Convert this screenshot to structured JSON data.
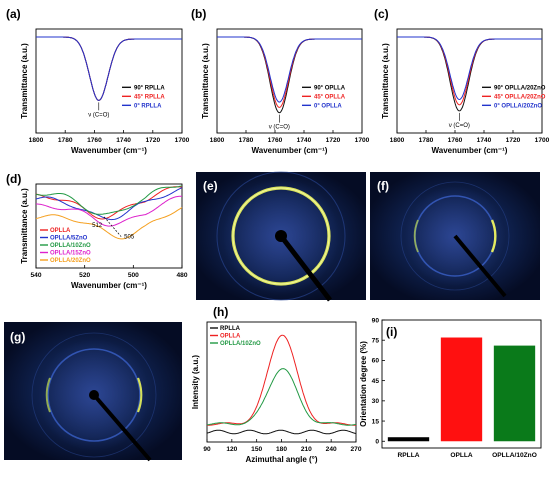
{
  "panel_labels": [
    "(a)",
    "(b)",
    "(c)",
    "(d)",
    "(e)",
    "(f)",
    "(g)",
    "(h)",
    "(i)"
  ],
  "colors": {
    "black": "#111111",
    "red": "#ee2222",
    "blue": "#2233cc",
    "green": "#229944",
    "magenta": "#dd22cc",
    "orange": "#f5a020",
    "xray_bg": "#0a1a3a",
    "ring": "#d8e060"
  },
  "chart_data": [
    {
      "panel": "(a)",
      "type": "line",
      "xlabel": "Wavenumber (cm⁻¹)",
      "ylabel": "Transmittance (a.u.)",
      "xlim": [
        1800,
        1700
      ],
      "xticks": [
        1800,
        1780,
        1760,
        1740,
        1720,
        1700
      ],
      "annotation": "ν (C=O)",
      "min_at": 1757,
      "series": [
        {
          "name": "90° RPLLA",
          "color": "#111111",
          "depth": 0.72
        },
        {
          "name": "45° RPLLA",
          "color": "#ee2222",
          "depth": 0.72
        },
        {
          "name": "0° RPLLA",
          "color": "#2233cc",
          "depth": 0.72
        }
      ]
    },
    {
      "panel": "(b)",
      "type": "line",
      "xlabel": "Wavenumber (cm⁻¹)",
      "ylabel": "Transmittance (a.u.)",
      "xlim": [
        1800,
        1700
      ],
      "xticks": [
        1800,
        1780,
        1760,
        1740,
        1720,
        1700
      ],
      "annotation": "ν (C=O)",
      "min_at": 1757,
      "series": [
        {
          "name": "90° OPLLA",
          "color": "#111111",
          "depth": 0.86
        },
        {
          "name": "45° OPLLA",
          "color": "#ee2222",
          "depth": 0.8
        },
        {
          "name": "0° OPLLA",
          "color": "#2233cc",
          "depth": 0.74
        }
      ]
    },
    {
      "panel": "(c)",
      "type": "line",
      "xlabel": "Wavenumber (cm⁻¹)",
      "ylabel": "Transmittance (a.u.)",
      "xlim": [
        1800,
        1700
      ],
      "xticks": [
        1800,
        1780,
        1760,
        1740,
        1720,
        1700
      ],
      "annotation": "ν (C=O)",
      "min_at": 1757,
      "series": [
        {
          "name": "90° OPLLA/20ZnO",
          "color": "#111111",
          "depth": 0.84
        },
        {
          "name": "45° OPLLA/20ZnO",
          "color": "#ee2222",
          "depth": 0.77
        },
        {
          "name": "0° OPLLA/20ZnO",
          "color": "#2233cc",
          "depth": 0.71
        }
      ]
    },
    {
      "panel": "(d)",
      "type": "line",
      "xlabel": "Wavenumber (cm⁻¹)",
      "ylabel": "Transmittance (a.u.)",
      "xlim": [
        540,
        480
      ],
      "xticks": [
        540,
        520,
        500,
        480
      ],
      "annotations": [
        "512",
        "505"
      ],
      "series": [
        {
          "name": "OPLLA",
          "color": "#ee2222"
        },
        {
          "name": "OPLLA/5ZnO",
          "color": "#2233cc"
        },
        {
          "name": "OPLLA/10ZnO",
          "color": "#229944"
        },
        {
          "name": "OPLLA/15ZnO",
          "color": "#dd22cc"
        },
        {
          "name": "OPLLA/20ZnO",
          "color": "#f5a020"
        }
      ]
    },
    {
      "panel": "(h)",
      "type": "line",
      "xlabel": "Azimuthal angle (°)",
      "ylabel": "Intensity (a.u.)",
      "xlim": [
        90,
        270
      ],
      "xticks": [
        90,
        120,
        150,
        180,
        210,
        240,
        270
      ],
      "series": [
        {
          "name": "RPLLA",
          "color": "#111111",
          "peak": 0.0
        },
        {
          "name": "OPLLA",
          "color": "#ee2222",
          "peak": 1.0
        },
        {
          "name": "OPLLA/10ZnO",
          "color": "#229944",
          "peak": 0.62
        }
      ]
    },
    {
      "panel": "(i)",
      "type": "bar",
      "ylabel": "Orientation degree (%)",
      "ylim": [
        -5,
        90
      ],
      "yticks": [
        0,
        15,
        30,
        45,
        60,
        75,
        90
      ],
      "categories": [
        "RPLLA",
        "OPLLA",
        "OPLLA/10ZnO"
      ],
      "values": [
        3,
        77,
        71
      ],
      "colors": [
        "#000000",
        "#ff1010",
        "#0a7a1a"
      ]
    }
  ]
}
